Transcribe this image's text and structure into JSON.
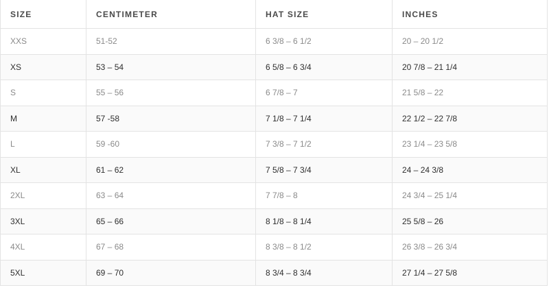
{
  "table": {
    "header": [
      "SIZE",
      "CENTIMETER",
      "HAT SIZE",
      "INCHES"
    ],
    "rows": [
      [
        "XXS",
        "51-52",
        "6 3/8 – 6 1/2",
        "20 – 20 1/2"
      ],
      [
        "XS",
        "53 – 54",
        "6 5/8 – 6 3/4",
        "20 7/8 – 21 1/4"
      ],
      [
        "S",
        "55 – 56",
        "6 7/8 – 7",
        "21 5/8 – 22"
      ],
      [
        "M",
        "57 -58",
        "7 1/8 – 7 1/4",
        "22 1/2 – 22 7/8"
      ],
      [
        "L",
        "59 -60",
        "7 3/8 – 7 1/2",
        "23 1/4 – 23 5/8"
      ],
      [
        "XL",
        "61 – 62",
        "7 5/8 – 7 3/4",
        "24 – 24 3/8"
      ],
      [
        "2XL",
        "63 – 64",
        "7 7/8 – 8",
        "24 3/4 – 25 1/4"
      ],
      [
        "3XL",
        "65 – 66",
        "8 1/8 – 8 1/4",
        "25 5/8 – 26"
      ],
      [
        "4XL",
        "67 – 68",
        "8 3/8 – 8 1/2",
        "26 3/8 – 26 3/4"
      ],
      [
        "5XL",
        "69 – 70",
        "8 3/4 – 8 3/4",
        "27 1/4 – 27 5/8"
      ]
    ]
  }
}
